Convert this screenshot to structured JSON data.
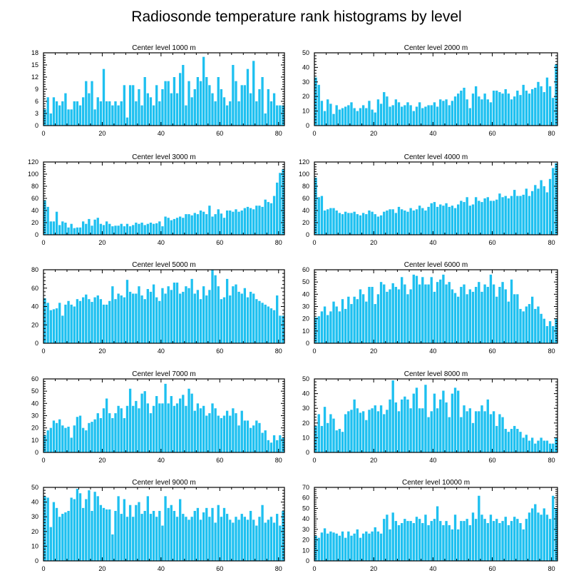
{
  "title": "Radiosonde temperature rank histograms by level",
  "bar_color": "#1ec0f0",
  "chart_data": [
    {
      "type": "bar",
      "title": "Center level 1000 m",
      "xlabel": "",
      "ylabel": "",
      "xlim": [
        0,
        82
      ],
      "ylim": [
        0,
        18
      ],
      "xticks": [
        0,
        20,
        40,
        60,
        80
      ],
      "yticks": [
        0,
        3,
        6,
        9,
        12,
        15,
        18
      ],
      "x_start": 0,
      "values": [
        4,
        7,
        3,
        7,
        6,
        5,
        6,
        8,
        4,
        4,
        6,
        6,
        5,
        7,
        11,
        8,
        11,
        4,
        7,
        6,
        14,
        6,
        6,
        5,
        6,
        5,
        6,
        10,
        2,
        10,
        10,
        6,
        9,
        5,
        12,
        8,
        7,
        5,
        10,
        6,
        9,
        11,
        11,
        8,
        12,
        8,
        13,
        15,
        5,
        11,
        7,
        9,
        12,
        11,
        17,
        12,
        10,
        8,
        6,
        12,
        9,
        7,
        5,
        6,
        15,
        11,
        6,
        10,
        10,
        14,
        8,
        16,
        6,
        9,
        12,
        3,
        9,
        6,
        8,
        5,
        5,
        5
      ]
    },
    {
      "type": "bar",
      "title": "Center level 2000 m",
      "xlabel": "",
      "ylabel": "",
      "xlim": [
        0,
        82
      ],
      "ylim": [
        0,
        50
      ],
      "xticks": [
        0,
        20,
        40,
        60,
        80
      ],
      "yticks": [
        0,
        10,
        20,
        30,
        40,
        50
      ],
      "x_start": 0,
      "values": [
        33,
        28,
        17,
        10,
        18,
        15,
        8,
        14,
        11,
        12,
        13,
        14,
        16,
        12,
        10,
        12,
        14,
        12,
        17,
        11,
        9,
        18,
        15,
        23,
        20,
        13,
        14,
        18,
        16,
        13,
        14,
        16,
        14,
        10,
        13,
        16,
        12,
        13,
        14,
        14,
        16,
        13,
        18,
        17,
        18,
        14,
        17,
        20,
        22,
        24,
        26,
        18,
        12,
        22,
        27,
        20,
        18,
        22,
        18,
        16,
        24,
        24,
        23,
        22,
        25,
        22,
        18,
        20,
        24,
        21,
        28,
        24,
        22,
        25,
        26,
        30,
        27,
        23,
        33,
        27,
        19,
        42
      ]
    },
    {
      "type": "bar",
      "title": "Center level 3000 m",
      "xlabel": "",
      "ylabel": "",
      "xlim": [
        0,
        82
      ],
      "ylim": [
        0,
        120
      ],
      "xticks": [
        0,
        20,
        40,
        60,
        80
      ],
      "yticks": [
        0,
        20,
        40,
        60,
        80,
        100,
        120
      ],
      "x_start": 0,
      "values": [
        57,
        46,
        22,
        22,
        38,
        16,
        22,
        20,
        12,
        18,
        11,
        12,
        12,
        22,
        18,
        26,
        15,
        25,
        28,
        18,
        16,
        22,
        18,
        14,
        15,
        15,
        18,
        14,
        18,
        14,
        16,
        20,
        18,
        20,
        16,
        18,
        20,
        18,
        19,
        22,
        14,
        30,
        28,
        24,
        26,
        28,
        30,
        28,
        34,
        34,
        32,
        36,
        34,
        40,
        38,
        34,
        48,
        30,
        34,
        42,
        35,
        28,
        40,
        40,
        38,
        42,
        38,
        40,
        44,
        46,
        44,
        42,
        48,
        48,
        46,
        58,
        54,
        52,
        64,
        86,
        102,
        108
      ]
    },
    {
      "type": "bar",
      "title": "Center level 4000 m",
      "xlabel": "",
      "ylabel": "",
      "xlim": [
        0,
        82
      ],
      "ylim": [
        0,
        120
      ],
      "xticks": [
        0,
        20,
        40,
        60,
        80
      ],
      "yticks": [
        0,
        20,
        40,
        60,
        80,
        100,
        120
      ],
      "x_start": 0,
      "values": [
        94,
        62,
        64,
        40,
        42,
        44,
        44,
        40,
        36,
        34,
        38,
        36,
        36,
        38,
        34,
        32,
        36,
        34,
        40,
        38,
        34,
        30,
        32,
        38,
        40,
        42,
        42,
        36,
        46,
        42,
        40,
        38,
        44,
        40,
        42,
        48,
        44,
        40,
        46,
        52,
        54,
        46,
        50,
        48,
        52,
        46,
        48,
        44,
        50,
        56,
        54,
        62,
        48,
        50,
        62,
        56,
        54,
        60,
        62,
        56,
        56,
        58,
        68,
        62,
        64,
        60,
        64,
        74,
        64,
        64,
        66,
        76,
        64,
        72,
        82,
        76,
        90,
        80,
        70,
        92,
        110,
        118
      ]
    },
    {
      "type": "bar",
      "title": "Center level 5000 m",
      "xlabel": "",
      "ylabel": "",
      "xlim": [
        0,
        82
      ],
      "ylim": [
        0,
        80
      ],
      "xticks": [
        0,
        20,
        40,
        60,
        80
      ],
      "yticks": [
        0,
        20,
        40,
        60,
        80
      ],
      "x_start": 0,
      "values": [
        49,
        44,
        36,
        37,
        38,
        44,
        30,
        42,
        46,
        42,
        40,
        48,
        46,
        50,
        53,
        48,
        45,
        50,
        52,
        48,
        42,
        42,
        46,
        62,
        48,
        54,
        52,
        50,
        69,
        56,
        54,
        54,
        62,
        52,
        48,
        59,
        56,
        64,
        50,
        46,
        60,
        54,
        62,
        58,
        66,
        66,
        54,
        56,
        62,
        60,
        70,
        54,
        58,
        48,
        62,
        52,
        58,
        80,
        74,
        62,
        48,
        50,
        70,
        52,
        62,
        64,
        56,
        54,
        60,
        50,
        56,
        54,
        48,
        46,
        44,
        42,
        40,
        38,
        36,
        52,
        30,
        30
      ]
    },
    {
      "type": "bar",
      "title": "Center level 6000 m",
      "xlabel": "",
      "ylabel": "",
      "xlim": [
        0,
        82
      ],
      "ylim": [
        0,
        60
      ],
      "xticks": [
        0,
        20,
        40,
        60,
        80
      ],
      "yticks": [
        0,
        10,
        20,
        30,
        40,
        50,
        60
      ],
      "x_start": 0,
      "values": [
        21,
        22,
        26,
        30,
        23,
        26,
        34,
        30,
        26,
        36,
        28,
        38,
        32,
        38,
        36,
        44,
        40,
        34,
        46,
        46,
        32,
        40,
        50,
        48,
        42,
        44,
        49,
        46,
        44,
        54,
        48,
        40,
        44,
        56,
        55,
        48,
        54,
        48,
        48,
        54,
        42,
        50,
        52,
        56,
        48,
        50,
        44,
        41,
        38,
        46,
        48,
        40,
        44,
        42,
        46,
        50,
        42,
        48,
        46,
        56,
        48,
        38,
        46,
        50,
        44,
        34,
        52,
        40,
        40,
        28,
        26,
        30,
        32,
        38,
        28,
        30,
        24,
        20,
        14,
        18,
        14,
        20
      ]
    },
    {
      "type": "bar",
      "title": "Center level 7000 m",
      "xlabel": "",
      "ylabel": "",
      "xlim": [
        0,
        82
      ],
      "ylim": [
        0,
        60
      ],
      "xticks": [
        0,
        20,
        40,
        60,
        80
      ],
      "yticks": [
        0,
        10,
        20,
        30,
        40,
        50,
        60
      ],
      "x_start": 0,
      "values": [
        14,
        18,
        20,
        26,
        24,
        27,
        22,
        20,
        21,
        12,
        22,
        29,
        30,
        20,
        18,
        24,
        25,
        27,
        32,
        28,
        36,
        44,
        32,
        28,
        32,
        38,
        36,
        28,
        38,
        52,
        38,
        42,
        36,
        48,
        50,
        40,
        32,
        38,
        46,
        40,
        40,
        56,
        40,
        46,
        38,
        40,
        44,
        47,
        38,
        52,
        48,
        34,
        40,
        36,
        38,
        30,
        32,
        40,
        36,
        30,
        28,
        30,
        34,
        30,
        36,
        32,
        22,
        34,
        26,
        26,
        20,
        22,
        26,
        24,
        16,
        18,
        10,
        8,
        14,
        10,
        14,
        12
      ]
    },
    {
      "type": "bar",
      "title": "Center level 8000 m",
      "xlabel": "",
      "ylabel": "",
      "xlim": [
        0,
        82
      ],
      "ylim": [
        0,
        50
      ],
      "xticks": [
        0,
        20,
        40,
        60,
        80
      ],
      "yticks": [
        0,
        10,
        20,
        30,
        40,
        50
      ],
      "x_start": 0,
      "values": [
        18,
        26,
        18,
        31,
        20,
        26,
        23,
        15,
        16,
        14,
        26,
        28,
        29,
        36,
        30,
        27,
        28,
        22,
        29,
        30,
        32,
        28,
        32,
        26,
        29,
        36,
        49,
        34,
        28,
        36,
        38,
        36,
        30,
        40,
        44,
        30,
        30,
        46,
        24,
        28,
        40,
        30,
        36,
        42,
        34,
        24,
        40,
        44,
        42,
        24,
        32,
        28,
        30,
        20,
        28,
        28,
        32,
        28,
        36,
        26,
        28,
        18,
        26,
        24,
        16,
        14,
        16,
        18,
        16,
        14,
        10,
        12,
        8,
        10,
        6,
        8,
        10,
        8,
        8,
        6,
        6,
        10
      ]
    },
    {
      "type": "bar",
      "title": "Center level 9000 m",
      "xlabel": "",
      "ylabel": "",
      "xlim": [
        0,
        82
      ],
      "ylim": [
        0,
        50
      ],
      "xticks": [
        0,
        20,
        40,
        60,
        80
      ],
      "yticks": [
        0,
        10,
        20,
        30,
        40,
        50
      ],
      "x_start": 0,
      "values": [
        44,
        43,
        23,
        40,
        36,
        30,
        32,
        33,
        34,
        43,
        42,
        49,
        46,
        36,
        42,
        48,
        34,
        47,
        44,
        38,
        36,
        35,
        35,
        18,
        34,
        44,
        32,
        42,
        30,
        38,
        30,
        38,
        40,
        32,
        34,
        44,
        32,
        34,
        30,
        34,
        24,
        44,
        36,
        38,
        34,
        30,
        42,
        32,
        30,
        28,
        30,
        34,
        36,
        28,
        33,
        36,
        30,
        36,
        26,
        38,
        30,
        36,
        32,
        28,
        26,
        30,
        28,
        32,
        30,
        28,
        34,
        28,
        24,
        30,
        38,
        26,
        28,
        30,
        26,
        32,
        24,
        34
      ]
    },
    {
      "type": "bar",
      "title": "Center level 10000 m",
      "xlabel": "",
      "ylabel": "",
      "xlim": [
        0,
        82
      ],
      "ylim": [
        0,
        70
      ],
      "xticks": [
        0,
        20,
        40,
        60,
        80
      ],
      "yticks": [
        0,
        10,
        20,
        30,
        40,
        50,
        60,
        70
      ],
      "x_start": 0,
      "values": [
        24,
        22,
        27,
        31,
        26,
        28,
        27,
        26,
        24,
        28,
        22,
        28,
        24,
        26,
        30,
        22,
        26,
        28,
        26,
        28,
        32,
        28,
        26,
        40,
        44,
        30,
        46,
        38,
        34,
        36,
        40,
        38,
        38,
        36,
        42,
        40,
        36,
        44,
        34,
        38,
        40,
        52,
        38,
        34,
        38,
        34,
        30,
        44,
        30,
        38,
        38,
        40,
        34,
        46,
        40,
        62,
        44,
        40,
        36,
        44,
        38,
        40,
        36,
        38,
        42,
        34,
        38,
        42,
        40,
        36,
        30,
        40,
        46,
        50,
        54,
        46,
        44,
        50,
        44,
        40,
        62,
        50
      ]
    }
  ]
}
